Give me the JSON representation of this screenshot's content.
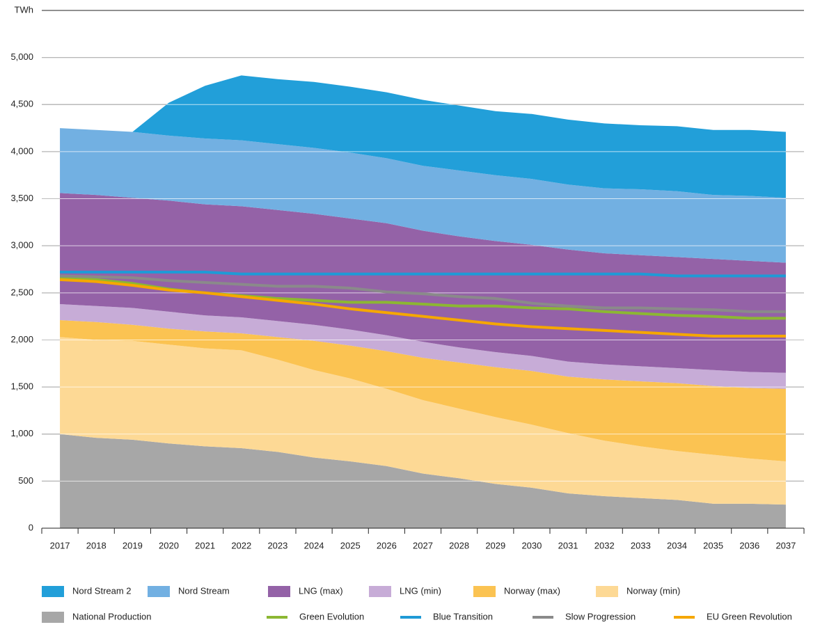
{
  "chart_data": {
    "type": "area",
    "y_label": "TWh",
    "categories": [
      "2017",
      "2018",
      "2019",
      "2020",
      "2021",
      "2022",
      "2023",
      "2024",
      "2025",
      "2026",
      "2027",
      "2028",
      "2029",
      "2030",
      "2031",
      "2032",
      "2033",
      "2034",
      "2035",
      "2036",
      "2037"
    ],
    "ylim": [
      0,
      5500
    ],
    "yticks": [
      0,
      500,
      {
        "value": 1000,
        "label": "1,000"
      },
      {
        "value": 1500,
        "label": "1,500"
      },
      {
        "value": 2000,
        "label": "2,000"
      },
      {
        "value": 2500,
        "label": "2,500"
      },
      {
        "value": 3000,
        "label": "3,000"
      },
      {
        "value": 3500,
        "label": "3,500"
      },
      {
        "value": 4000,
        "label": "4,000"
      },
      {
        "value": 4500,
        "label": "4,500"
      },
      {
        "value": 5000,
        "label": "5,000"
      }
    ],
    "grid": true,
    "stacked": true,
    "series": [
      {
        "name": "Nord Stream 2",
        "type": "area",
        "color": "#229fd9",
        "values": [
          0,
          0,
          0,
          350,
          560,
          690,
          690,
          700,
          700,
          700,
          700,
          690,
          680,
          690,
          690,
          690,
          680,
          690,
          690,
          700,
          700
        ]
      },
      {
        "name": "Nord Stream",
        "type": "area",
        "color": "#72b0e2",
        "values": [
          690,
          690,
          700,
          690,
          700,
          700,
          700,
          700,
          700,
          690,
          690,
          700,
          700,
          700,
          690,
          690,
          700,
          700,
          680,
          690,
          690
        ]
      },
      {
        "name": "LNG (max)",
        "type": "area",
        "color": "#9462a7",
        "values": [
          1180,
          1180,
          1170,
          1180,
          1180,
          1180,
          1180,
          1180,
          1180,
          1190,
          1180,
          1180,
          1180,
          1180,
          1190,
          1180,
          1180,
          1180,
          1180,
          1180,
          1170
        ]
      },
      {
        "name": "LNG (min)",
        "type": "area",
        "color": "#c7acd7",
        "values": [
          170,
          170,
          180,
          180,
          170,
          170,
          170,
          170,
          170,
          170,
          170,
          160,
          160,
          160,
          160,
          160,
          160,
          160,
          170,
          170,
          170
        ]
      },
      {
        "name": "Norway (max)",
        "type": "area",
        "color": "#fbc352",
        "values": [
          180,
          190,
          170,
          170,
          180,
          180,
          240,
          310,
          350,
          400,
          450,
          490,
          530,
          570,
          600,
          650,
          690,
          720,
          730,
          750,
          770
        ]
      },
      {
        "name": "Norway (min)",
        "type": "area",
        "color": "#fdd995",
        "values": [
          1030,
          1040,
          1050,
          1050,
          1040,
          1040,
          980,
          930,
          880,
          820,
          780,
          740,
          710,
          670,
          640,
          590,
          550,
          520,
          520,
          480,
          460
        ]
      },
      {
        "name": "National Production",
        "type": "area",
        "color": "#a7a7a7",
        "values": [
          1000,
          960,
          940,
          900,
          870,
          850,
          810,
          750,
          710,
          660,
          580,
          530,
          470,
          430,
          370,
          340,
          320,
          300,
          260,
          260,
          250
        ]
      },
      {
        "name": "Green Evolution",
        "type": "line",
        "color": "#8cb733",
        "values": [
          2660,
          2640,
          2600,
          2540,
          2500,
          2470,
          2440,
          2420,
          2400,
          2400,
          2380,
          2360,
          2360,
          2340,
          2330,
          2300,
          2280,
          2260,
          2250,
          2230,
          2230
        ]
      },
      {
        "name": "Blue Transition",
        "type": "line",
        "color": "#1f9ad6",
        "values": [
          2720,
          2720,
          2720,
          2720,
          2720,
          2700,
          2700,
          2700,
          2700,
          2700,
          2700,
          2700,
          2700,
          2700,
          2700,
          2700,
          2700,
          2680,
          2680,
          2680,
          2680
        ]
      },
      {
        "name": "Slow Progression",
        "type": "line",
        "color": "#8a8a8a",
        "values": [
          2680,
          2670,
          2660,
          2630,
          2610,
          2590,
          2570,
          2570,
          2550,
          2510,
          2490,
          2460,
          2440,
          2390,
          2360,
          2340,
          2340,
          2330,
          2320,
          2300,
          2300
        ]
      },
      {
        "name": "EU Green Revolution",
        "type": "line",
        "color": "#f5a700",
        "values": [
          2640,
          2620,
          2580,
          2530,
          2500,
          2460,
          2420,
          2380,
          2330,
          2290,
          2250,
          2210,
          2170,
          2140,
          2120,
          2100,
          2080,
          2060,
          2040,
          2040,
          2040
        ]
      }
    ]
  }
}
